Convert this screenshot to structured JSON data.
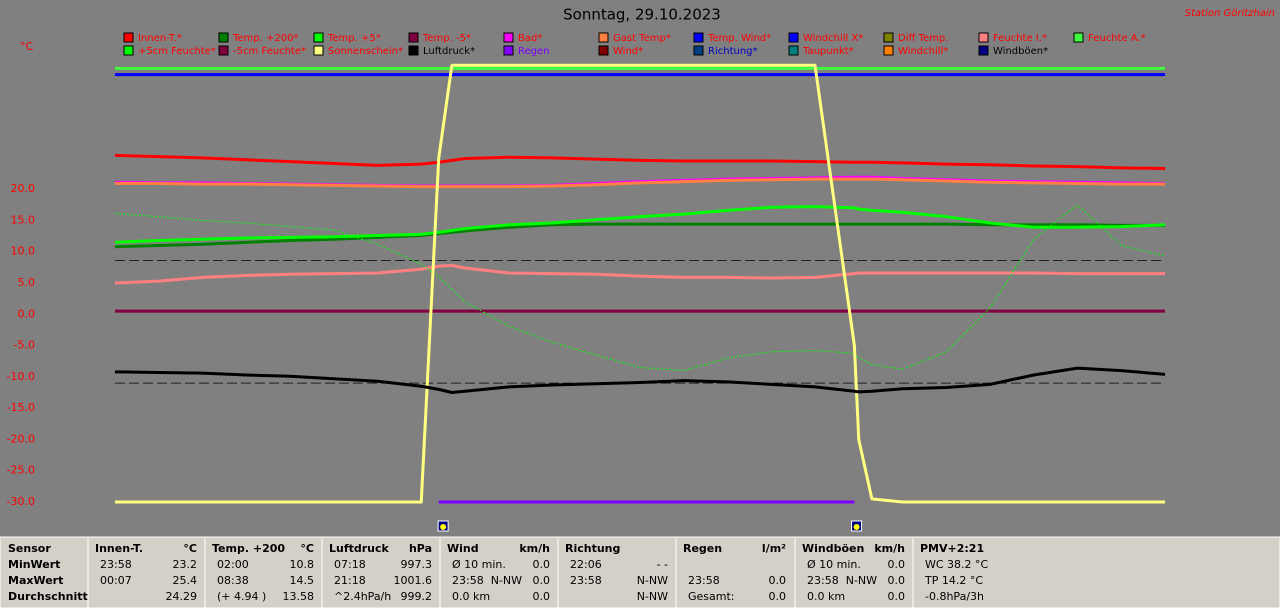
{
  "chart_data": {
    "type": "line",
    "title": "Sonntag, 29.10.2023",
    "station": "Station Göritzhain",
    "y_unit": "°C",
    "xlim": [
      0,
      24
    ],
    "ylim": [
      -30,
      40
    ],
    "yticks": [
      {
        "value": 20,
        "label": "20.0"
      },
      {
        "value": 15,
        "label": "15.0"
      },
      {
        "value": 10,
        "label": "10.0"
      },
      {
        "value": 5,
        "label": "5.0"
      },
      {
        "value": 0,
        "label": "0.0"
      },
      {
        "value": -5,
        "label": "-5.0"
      },
      {
        "value": -10,
        "label": "-10.0"
      },
      {
        "value": -15,
        "label": "-15.0"
      },
      {
        "value": -20,
        "label": "-20.0"
      },
      {
        "value": -25,
        "label": "-25.0"
      },
      {
        "value": -30,
        "label": "-30.0"
      }
    ],
    "reference_lines": [
      8.6,
      -11.0
    ],
    "sun_markers_x": [
      7.5,
      16.95
    ],
    "x": [
      0,
      1,
      2,
      3,
      4,
      5,
      6,
      7,
      7.4,
      7.7,
      8,
      9,
      10,
      11,
      12,
      13,
      14,
      15,
      16,
      16.9,
      17,
      17.3,
      18,
      19,
      20,
      21,
      22,
      23,
      24
    ],
    "series": [
      {
        "name": "Innen-T.*",
        "color": "#ff0000",
        "label_color": "#ff0000",
        "values": [
          25.4,
          25.2,
          25.0,
          24.7,
          24.4,
          24.1,
          23.8,
          24.0,
          24.3,
          24.6,
          24.9,
          25.1,
          25.0,
          24.8,
          24.6,
          24.5,
          24.5,
          24.5,
          24.4,
          24.3,
          24.3,
          24.3,
          24.2,
          24.0,
          23.9,
          23.7,
          23.6,
          23.4,
          23.3
        ]
      },
      {
        "name": "Temp. +200*",
        "color": "#008000",
        "label_color": "#ff0000",
        "values": [
          10.8,
          11.0,
          11.2,
          11.5,
          11.8,
          12.0,
          12.3,
          12.6,
          12.9,
          13.1,
          13.3,
          13.9,
          14.3,
          14.4,
          14.4,
          14.4,
          14.4,
          14.4,
          14.4,
          14.4,
          14.4,
          14.4,
          14.4,
          14.4,
          14.3,
          14.3,
          14.3,
          14.2,
          14.2
        ]
      },
      {
        "name": "Temp. +5*",
        "color": "#00ff00",
        "label_color": "#ff0000",
        "values": [
          11.5,
          11.8,
          12.0,
          12.2,
          12.3,
          12.4,
          12.6,
          12.8,
          13.1,
          13.4,
          13.7,
          14.3,
          14.6,
          15.1,
          15.6,
          16.0,
          16.6,
          17.1,
          17.2,
          17.0,
          16.8,
          16.6,
          16.3,
          15.6,
          14.6,
          13.9,
          13.9,
          14.0,
          14.3
        ]
      },
      {
        "name": "Temp. -5*",
        "color": "#800040",
        "label_color": "#ff0000",
        "values": [
          0.5,
          0.5,
          0.5,
          0.5,
          0.5,
          0.5,
          0.5,
          0.5,
          0.5,
          0.5,
          0.5,
          0.5,
          0.5,
          0.5,
          0.5,
          0.5,
          0.5,
          0.5,
          0.5,
          0.5,
          0.5,
          0.5,
          0.5,
          0.5,
          0.5,
          0.5,
          0.5,
          0.5,
          0.5
        ]
      },
      {
        "name": "Bad*",
        "color": "#ff00ff",
        "label_color": "#ff0000",
        "values": [
          21.1,
          21.0,
          21.0,
          20.9,
          20.8,
          20.7,
          20.6,
          20.5,
          20.5,
          20.5,
          20.5,
          20.5,
          20.6,
          20.9,
          21.2,
          21.4,
          21.6,
          21.7,
          21.8,
          21.9,
          21.9,
          21.9,
          21.7,
          21.5,
          21.3,
          21.2,
          21.1,
          21.0,
          20.9
        ]
      },
      {
        "name": "Gast Temp*",
        "color": "#ff8040",
        "label_color": "#ff0000",
        "values": [
          20.9,
          20.9,
          20.8,
          20.8,
          20.7,
          20.6,
          20.5,
          20.4,
          20.4,
          20.4,
          20.4,
          20.4,
          20.5,
          20.7,
          21.0,
          21.2,
          21.4,
          21.5,
          21.6,
          21.6,
          21.6,
          21.6,
          21.5,
          21.3,
          21.1,
          21.0,
          20.9,
          20.8,
          20.8
        ]
      },
      {
        "name": "Temp. Wind*",
        "color": "#0000ff",
        "label_color": "#ff0000",
        "values": [
          38.3,
          38.3,
          38.3,
          38.3,
          38.3,
          38.3,
          38.3,
          38.3,
          38.3,
          38.3,
          38.3,
          38.3,
          38.3,
          38.3,
          38.3,
          38.3,
          38.3,
          38.3,
          38.3,
          38.3,
          38.3,
          38.3,
          38.3,
          38.3,
          38.3,
          38.3,
          38.3,
          38.3,
          38.3
        ]
      },
      {
        "name": "Windchill X*",
        "color": "#0000ff",
        "label_color": "#ff0000",
        "values": [
          null,
          null,
          null,
          null,
          null,
          null,
          null,
          null,
          null,
          null,
          null,
          null,
          null,
          null,
          null,
          null,
          null,
          null,
          null,
          null,
          null,
          null,
          null,
          null,
          null,
          null,
          null,
          null,
          null
        ]
      },
      {
        "name": "Diff Temp.",
        "color": "#808000",
        "label_color": "#ff0000",
        "values": [
          null,
          null,
          null,
          null,
          null,
          null,
          null,
          null,
          null,
          null,
          null,
          null,
          null,
          null,
          null,
          null,
          null,
          null,
          null,
          null,
          null,
          null,
          null,
          null,
          null,
          null,
          null,
          null,
          null
        ]
      },
      {
        "name": "Feuchte I.*",
        "color": "#ff8080",
        "label_color": "#ff0000",
        "values": [
          5.0,
          5.3,
          5.9,
          6.2,
          6.4,
          6.5,
          6.6,
          7.2,
          7.7,
          7.8,
          7.4,
          6.6,
          6.5,
          6.4,
          6.1,
          5.9,
          5.9,
          5.8,
          5.9,
          6.5,
          6.6,
          6.6,
          6.6,
          6.6,
          6.6,
          6.6,
          6.5,
          6.5,
          6.5
        ]
      },
      {
        "name": "Feuchte A.*",
        "color": "#40ff40",
        "label_color": "#ff0000",
        "values": [
          39.3,
          39.3,
          39.3,
          39.3,
          39.3,
          39.3,
          39.3,
          39.3,
          39.3,
          39.3,
          39.3,
          39.3,
          39.3,
          39.3,
          39.3,
          39.3,
          39.3,
          39.3,
          39.3,
          39.3,
          39.3,
          39.3,
          39.3,
          39.3,
          39.3,
          39.3,
          39.3,
          39.3,
          39.3
        ]
      },
      {
        "name": "+5cm Feuchte*",
        "color": "#00ff00",
        "label_color": "#ff0000",
        "style": "dotted",
        "values": [
          16.1,
          15.6,
          15.0,
          14.6,
          14.0,
          13.5,
          11.2,
          8.0,
          6.0,
          4.0,
          2.0,
          -1.9,
          -4.5,
          -6.5,
          -8.5,
          -9.0,
          -7.0,
          -6.0,
          -5.8,
          -6.2,
          -7.0,
          -8.0,
          -8.8,
          -6.0,
          1.0,
          12.0,
          17.5,
          11.0,
          9.3
        ]
      },
      {
        "name": "-5cm Feuchte*",
        "color": "#800040",
        "label_color": "#ff0000",
        "values": [
          null,
          null,
          null,
          null,
          null,
          null,
          null,
          null,
          null,
          null,
          null,
          null,
          null,
          null,
          null,
          null,
          null,
          null,
          null,
          null,
          null,
          null,
          null,
          null,
          null,
          null,
          null,
          null,
          null
        ]
      },
      {
        "name": "Sonnenschein*",
        "color": "#ffff80",
        "label_color": "#ff0000",
        "values": [
          -30,
          -30,
          -30,
          -30,
          -30,
          -30,
          -30,
          -30,
          25,
          39.8,
          39.8,
          39.8,
          39.8,
          39.8,
          39.8,
          39.8,
          39.8,
          39.8,
          39.8,
          -5,
          -20,
          -29.5,
          -30,
          -30,
          -30,
          -30,
          -30,
          -30,
          -30
        ]
      },
      {
        "name": "Luftdruck*",
        "color": "#000000",
        "label_color": "#000000",
        "values": [
          -9.2,
          -9.3,
          -9.4,
          -9.7,
          -9.9,
          -10.3,
          -10.7,
          -11.5,
          -12.0,
          -12.5,
          -12.3,
          -11.6,
          -11.3,
          -11.1,
          -10.9,
          -10.6,
          -10.8,
          -11.2,
          -11.6,
          -12.3,
          -12.4,
          -12.3,
          -11.9,
          -11.7,
          -11.2,
          -9.7,
          -8.6,
          -9.0,
          -9.6
        ]
      },
      {
        "name": "Regen",
        "color": "#8000ff",
        "label_color": "#8000ff",
        "values": [
          null,
          null,
          null,
          null,
          null,
          null,
          null,
          null,
          -30,
          -30,
          -30,
          -30,
          -30,
          -30,
          -30,
          -30,
          -30,
          -30,
          -30,
          -30,
          null,
          null,
          null,
          null,
          null,
          null,
          null,
          null,
          null
        ]
      },
      {
        "name": "Wind*",
        "color": "#800000",
        "label_color": "#ff0000",
        "values": [
          null,
          null,
          null,
          null,
          null,
          null,
          null,
          null,
          null,
          null,
          null,
          null,
          null,
          null,
          null,
          null,
          null,
          null,
          null,
          null,
          null,
          null,
          null,
          null,
          null,
          null,
          null,
          null,
          null
        ]
      },
      {
        "name": "Richtung*",
        "color": "#004080",
        "label_color": "#0000c0",
        "values": [
          null,
          null,
          null,
          null,
          null,
          null,
          null,
          null,
          null,
          null,
          null,
          null,
          null,
          null,
          null,
          null,
          null,
          null,
          null,
          null,
          null,
          null,
          null,
          null,
          null,
          null,
          null,
          null,
          null
        ]
      },
      {
        "name": "Taupunkt*",
        "color": "#008080",
        "label_color": "#ff0000",
        "values": [
          null,
          null,
          null,
          null,
          null,
          null,
          null,
          null,
          null,
          null,
          null,
          null,
          null,
          null,
          null,
          null,
          null,
          null,
          null,
          null,
          null,
          null,
          null,
          null,
          null,
          null,
          null,
          null,
          null
        ]
      },
      {
        "name": "Windchill*",
        "color": "#ff8000",
        "label_color": "#ff0000",
        "values": [
          null,
          null,
          null,
          null,
          null,
          null,
          null,
          null,
          null,
          null,
          null,
          null,
          null,
          null,
          null,
          null,
          null,
          null,
          null,
          null,
          null,
          null,
          null,
          null,
          null,
          null,
          null,
          null,
          null
        ]
      },
      {
        "name": "Windböen*",
        "color": "#000080",
        "label_color": "#000000",
        "values": [
          null,
          null,
          null,
          null,
          null,
          null,
          null,
          null,
          null,
          null,
          null,
          null,
          null,
          null,
          null,
          null,
          null,
          null,
          null,
          null,
          null,
          null,
          null,
          null,
          null,
          null,
          null,
          null,
          null
        ]
      }
    ]
  },
  "table": {
    "labels": [
      "Sensor",
      "MinWert",
      "MaxWert",
      "Durchschnitt"
    ],
    "sections": [
      {
        "header": "Innen-T.",
        "unit": "°C",
        "min": {
          "left": "23:58",
          "right": "23.2"
        },
        "max": {
          "left": "00:07",
          "right": "25.4"
        },
        "avg": {
          "right": "24.29"
        }
      },
      {
        "header": "Temp. +200",
        "unit": "°C",
        "min": {
          "left": "02:00",
          "right": "10.8"
        },
        "max": {
          "left": "08:38",
          "right": "14.5"
        },
        "avg": {
          "left": "(+ 4.94 )",
          "right": "13.58"
        }
      },
      {
        "header": "Luftdruck",
        "unit": "hPa",
        "min": {
          "left": "07:18",
          "right": "997.3"
        },
        "max": {
          "left": "21:18",
          "right": "1001.6"
        },
        "avg": {
          "left": "^2.4hPa/h",
          "right": "999.2"
        }
      },
      {
        "header": "Wind",
        "unit": "km/h",
        "min": {
          "left": "Ø 10 min.",
          "right": "0.0"
        },
        "max": {
          "left": "23:58",
          "mid": "N-NW",
          "right": "0.0"
        },
        "avg": {
          "left": "0.0 km",
          "right": "0.0"
        }
      },
      {
        "header": "Richtung",
        "min": {
          "left": "22:06",
          "right": "- -"
        },
        "max": {
          "left": "23:58",
          "right": "N-NW"
        },
        "avg": {
          "right": "N-NW"
        }
      },
      {
        "header": "Regen",
        "unit": "l/m²",
        "max": {
          "left": "23:58",
          "right": "0.0"
        },
        "avg": {
          "left": "Gesamt:",
          "right": "0.0"
        }
      },
      {
        "header": "Windböen",
        "unit": "km/h",
        "min": {
          "left": "Ø 10 min.",
          "right": "0.0"
        },
        "max": {
          "left": "23:58",
          "mid": "N-NW",
          "right": "0.0"
        },
        "avg": {
          "left": "0.0 km",
          "right": "0.0"
        }
      },
      {
        "header": "PMV+2:21",
        "min": {
          "left": "WC 38.2 °C"
        },
        "max": {
          "left": "TP 14.2 °C"
        },
        "avg": {
          "left": "-0.8hPa/3h"
        }
      }
    ]
  }
}
